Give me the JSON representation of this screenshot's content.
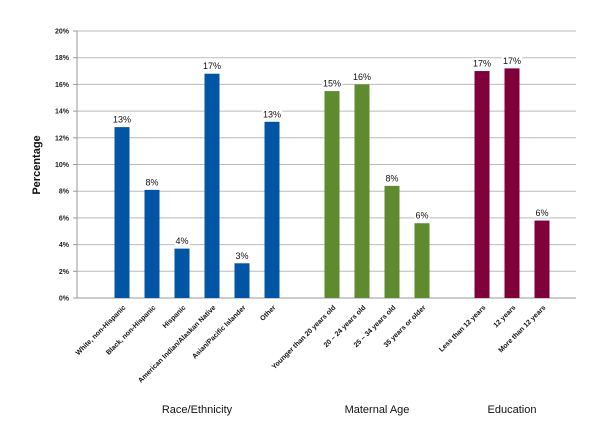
{
  "chart_data": {
    "type": "bar",
    "title": "",
    "ylabel": "Percentage",
    "ylim": [
      0,
      20
    ],
    "yticks": [
      "0%",
      "2%",
      "4%",
      "6%",
      "8%",
      "10%",
      "12%",
      "14%",
      "16%",
      "18%",
      "20%"
    ],
    "grid": true,
    "groups": [
      {
        "name": "Race/Ethnicity",
        "color": "#0055a5",
        "categories": [
          "White, non-Hispanic",
          "Black, non-Hispanic",
          "Hispanic",
          "American Indian/Alaskan Native",
          "Asian/Pacific Islander",
          "Other"
        ],
        "values": [
          12.8,
          8.1,
          3.7,
          16.8,
          2.6,
          13.2
        ],
        "labels": [
          "13%",
          "8%",
          "4%",
          "17%",
          "3%",
          "13%"
        ]
      },
      {
        "name": "Maternal Age",
        "color": "#5e8b2d",
        "categories": [
          "Younger than 20 years old",
          "20 – 24 years old",
          "25 – 34 years old",
          "35 years or older"
        ],
        "values": [
          15.5,
          16.0,
          8.4,
          5.6
        ],
        "labels": [
          "15%",
          "16%",
          "8%",
          "6%"
        ]
      },
      {
        "name": "Education",
        "color": "#80003a",
        "categories": [
          "Less than 12 years",
          "12 years",
          "More than 12 years"
        ],
        "values": [
          17.0,
          17.2,
          5.8
        ],
        "labels": [
          "17%",
          "17%",
          "6%"
        ]
      }
    ]
  }
}
